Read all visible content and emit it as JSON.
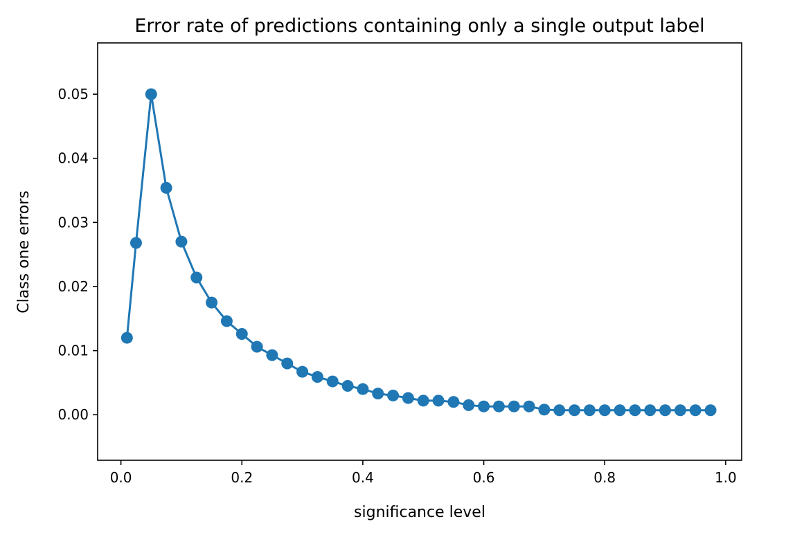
{
  "chart_data": {
    "type": "line",
    "title": "Error rate of predictions containing only a single output label",
    "xlabel": "significance level",
    "ylabel": "Class one errors",
    "xlim": [
      -0.0385,
      1.0265
    ],
    "ylim": [
      -0.0071,
      0.058
    ],
    "xticks": [
      0.0,
      0.2,
      0.4,
      0.6,
      0.8,
      1.0
    ],
    "xtick_labels": [
      "0.0",
      "0.2",
      "0.4",
      "0.6",
      "0.8",
      "1.0"
    ],
    "yticks": [
      0.0,
      0.01,
      0.02,
      0.03,
      0.04,
      0.05
    ],
    "ytick_labels": [
      "0.00",
      "0.01",
      "0.02",
      "0.03",
      "0.04",
      "0.05"
    ],
    "grid": false,
    "color": "#1f77b4",
    "series": [
      {
        "x": [
          0.01,
          0.025,
          0.05,
          0.075,
          0.1,
          0.125,
          0.15,
          0.175,
          0.2,
          0.225,
          0.25,
          0.275,
          0.3,
          0.325,
          0.35,
          0.375,
          0.4,
          0.425,
          0.45,
          0.475,
          0.5,
          0.525,
          0.55,
          0.575,
          0.6,
          0.625,
          0.65,
          0.675,
          0.7,
          0.725,
          0.75,
          0.775,
          0.8,
          0.825,
          0.85,
          0.875,
          0.9,
          0.925,
          0.95,
          0.975
        ],
        "y": [
          0.012,
          0.0268,
          0.05,
          0.0354,
          0.027,
          0.0214,
          0.0175,
          0.0146,
          0.0126,
          0.0106,
          0.0093,
          0.008,
          0.0067,
          0.0059,
          0.0052,
          0.0045,
          0.004,
          0.0033,
          0.003,
          0.0026,
          0.0022,
          0.0022,
          0.002,
          0.0015,
          0.0013,
          0.0013,
          0.0013,
          0.0013,
          0.0008,
          0.0007,
          0.0007,
          0.0007,
          0.0007,
          0.0007,
          0.0007,
          0.0007,
          0.0007,
          0.0007,
          0.0007,
          0.0007
        ]
      }
    ]
  }
}
